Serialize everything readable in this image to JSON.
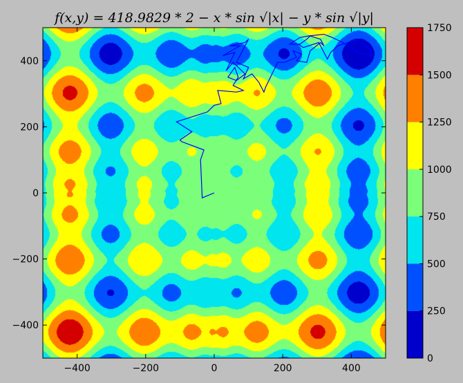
{
  "chart_data": {
    "type": "heatmap",
    "title": "f(x,y) = 418.9829 * 2 − x * sin √|x| − y * sin √|y|",
    "xlabel": "",
    "ylabel": "",
    "xlim": [
      -500,
      500
    ],
    "ylim": [
      -500,
      500
    ],
    "x_ticks": [
      -400,
      -200,
      0,
      200,
      400
    ],
    "y_ticks": [
      -400,
      -200,
      0,
      200,
      400
    ],
    "grid": false,
    "function": "418.9829*2 - x*sin(sqrt(|x|)) - y*sin(sqrt(|y|))",
    "contour_levels": [
      0,
      250,
      500,
      750,
      1000,
      1250,
      1500,
      1750
    ],
    "level_colors": [
      "#0000cd",
      "#0050ff",
      "#00e5ee",
      "#7bff7b",
      "#ffff00",
      "#ff8000",
      "#d40000"
    ],
    "colorbar": {
      "ticks": [
        0,
        250,
        500,
        750,
        1000,
        1250,
        1500,
        1750
      ],
      "range": [
        0,
        1750
      ],
      "placement": "right"
    },
    "path": {
      "color": "#0000ff",
      "points": [
        [
          0,
          0
        ],
        [
          -35,
          -15
        ],
        [
          -40,
          100
        ],
        [
          -30,
          130
        ],
        [
          -95,
          155
        ],
        [
          -100,
          160
        ],
        [
          -65,
          185
        ],
        [
          -110,
          215
        ],
        [
          -20,
          245
        ],
        [
          0,
          265
        ],
        [
          20,
          270
        ],
        [
          10,
          310
        ],
        [
          65,
          305
        ],
        [
          85,
          310
        ],
        [
          55,
          325
        ],
        [
          70,
          350
        ],
        [
          60,
          380
        ],
        [
          40,
          350
        ],
        [
          65,
          340
        ],
        [
          90,
          360
        ],
        [
          55,
          395
        ],
        [
          35,
          370
        ],
        [
          60,
          425
        ],
        [
          25,
          415
        ],
        [
          75,
          445
        ],
        [
          45,
          445
        ],
        [
          90,
          455
        ],
        [
          100,
          465
        ],
        [
          80,
          425
        ],
        [
          65,
          395
        ],
        [
          100,
          380
        ],
        [
          85,
          345
        ],
        [
          110,
          360
        ],
        [
          130,
          335
        ],
        [
          145,
          305
        ],
        [
          150,
          320
        ],
        [
          185,
          395
        ],
        [
          205,
          395
        ],
        [
          240,
          410
        ],
        [
          230,
          430
        ],
        [
          255,
          420
        ],
        [
          240,
          400
        ],
        [
          270,
          395
        ],
        [
          280,
          430
        ],
        [
          310,
          455
        ],
        [
          320,
          445
        ],
        [
          310,
          465
        ],
        [
          280,
          475
        ],
        [
          270,
          465
        ],
        [
          250,
          450
        ],
        [
          220,
          450
        ],
        [
          250,
          470
        ],
        [
          275,
          475
        ],
        [
          320,
          480
        ],
        [
          345,
          470
        ],
        [
          375,
          455
        ],
        [
          395,
          440
        ],
        [
          420,
          425
        ],
        [
          460,
          415
        ],
        [
          455,
          435
        ],
        [
          420,
          460
        ],
        [
          390,
          455
        ],
        [
          360,
          445
        ],
        [
          340,
          425
        ],
        [
          330,
          405
        ],
        [
          305,
          455
        ],
        [
          260,
          440
        ],
        [
          245,
          450
        ]
      ]
    }
  }
}
